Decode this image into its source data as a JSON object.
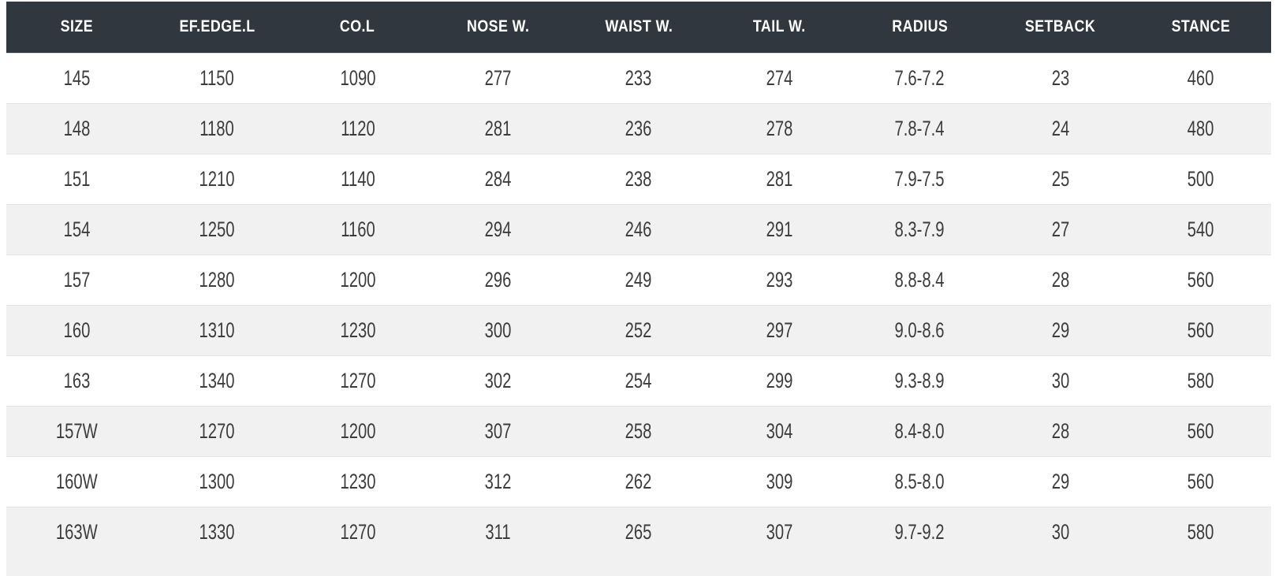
{
  "table": {
    "columns": [
      "SIZE",
      "EF.EDGE.L",
      "CO.L",
      "NOSE W.",
      "WAIST W.",
      "TAIL W.",
      "RADIUS",
      "SETBACK",
      "STANCE"
    ],
    "rows": [
      [
        "145",
        "1150",
        "1090",
        "277",
        "233",
        "274",
        "7.6-7.2",
        "23",
        "460"
      ],
      [
        "148",
        "1180",
        "1120",
        "281",
        "236",
        "278",
        "7.8-7.4",
        "24",
        "480"
      ],
      [
        "151",
        "1210",
        "1140",
        "284",
        "238",
        "281",
        "7.9-7.5",
        "25",
        "500"
      ],
      [
        "154",
        "1250",
        "1160",
        "294",
        "246",
        "291",
        "8.3-7.9",
        "27",
        "540"
      ],
      [
        "157",
        "1280",
        "1200",
        "296",
        "249",
        "293",
        "8.8-8.4",
        "28",
        "560"
      ],
      [
        "160",
        "1310",
        "1230",
        "300",
        "252",
        "297",
        "9.0-8.6",
        "29",
        "560"
      ],
      [
        "163",
        "1340",
        "1270",
        "302",
        "254",
        "299",
        "9.3-8.9",
        "30",
        "580"
      ],
      [
        "157W",
        "1270",
        "1200",
        "307",
        "258",
        "304",
        "8.4-8.0",
        "28",
        "560"
      ],
      [
        "160W",
        "1300",
        "1230",
        "312",
        "262",
        "309",
        "8.5-8.0",
        "29",
        "560"
      ],
      [
        "163W",
        "1330",
        "1270",
        "311",
        "265",
        "307",
        "9.7-9.2",
        "30",
        "580"
      ]
    ]
  },
  "colors": {
    "header_bg": "#31373e",
    "header_text": "#ffffff",
    "row_bg": "#ffffff",
    "row_alt_bg": "#f1f1f1",
    "row_border": "#e4e4e4",
    "header_border": "#d9dce0",
    "cell_text": "#3c3c3c"
  }
}
